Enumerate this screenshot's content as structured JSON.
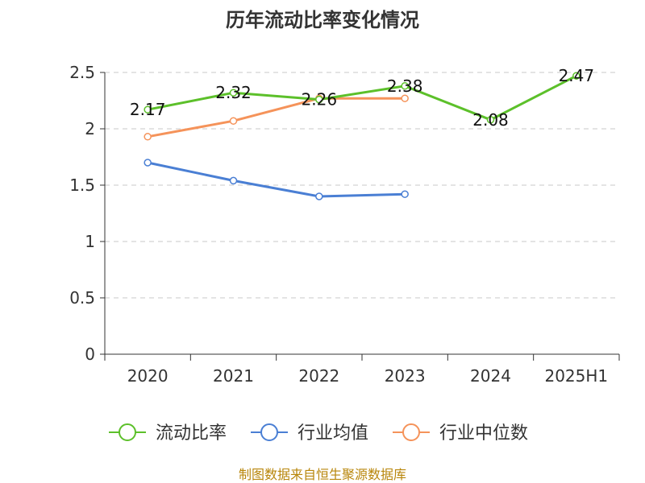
{
  "chart_data": {
    "type": "line",
    "title": "历年流动比率变化情况",
    "categories": [
      "2020",
      "2021",
      "2022",
      "2023",
      "2024",
      "2025H1"
    ],
    "y_ticks": [
      "0",
      "0.5",
      "1",
      "1.5",
      "2",
      "2.5"
    ],
    "ylim": [
      0,
      2.5
    ],
    "grid": true,
    "legend_position": "bottom",
    "series": [
      {
        "name": "流动比率",
        "color": "#5cc02a",
        "values": [
          2.17,
          2.32,
          2.26,
          2.38,
          2.08,
          2.47
        ],
        "labels": [
          "2.17",
          "2.32",
          "2.26",
          "2.38",
          "2.08",
          "2.47"
        ]
      },
      {
        "name": "行业均值",
        "color": "#4a7fd4",
        "values": [
          1.7,
          1.54,
          1.4,
          1.42,
          null,
          null
        ]
      },
      {
        "name": "行业中位数",
        "color": "#f5935a",
        "values": [
          1.93,
          2.07,
          2.27,
          2.27,
          null,
          null
        ]
      }
    ]
  },
  "source": "制图数据来自恒生聚源数据库"
}
